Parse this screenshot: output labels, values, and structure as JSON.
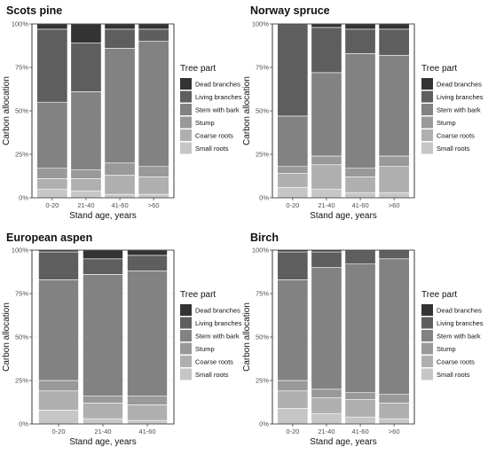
{
  "legend": {
    "title": "Tree part",
    "entries": [
      "Dead branches",
      "Living branches",
      "Stem with bark",
      "Stump",
      "Coarse roots",
      "Small roots"
    ]
  },
  "colors": {
    "Dead branches": "#333333",
    "Living branches": "#5e5e5e",
    "Stem with bark": "#828282",
    "Stump": "#999999",
    "Coarse roots": "#afafaf",
    "Small roots": "#c6c6c6"
  },
  "chart_data": [
    {
      "type": "bar",
      "stacked": true,
      "title": "Scots pine",
      "xlabel": "Stand age, years",
      "ylabel": "Carbon allocation",
      "ylim": [
        0,
        100
      ],
      "yticks": [
        "0%",
        "25%",
        "50%",
        "75%",
        "100%"
      ],
      "categories": [
        "0-20",
        "21-40",
        "41-60",
        ">60"
      ],
      "series": [
        {
          "name": "Small roots",
          "values": [
            5,
            4,
            2,
            2
          ]
        },
        {
          "name": "Coarse roots",
          "values": [
            6,
            7,
            11,
            10
          ]
        },
        {
          "name": "Stump",
          "values": [
            6,
            5,
            7,
            6
          ]
        },
        {
          "name": "Stem with bark",
          "values": [
            38,
            45,
            66,
            72
          ]
        },
        {
          "name": "Living branches",
          "values": [
            42,
            28,
            11,
            7
          ]
        },
        {
          "name": "Dead branches",
          "values": [
            3,
            11,
            3,
            3
          ]
        }
      ]
    },
    {
      "type": "bar",
      "stacked": true,
      "title": "Norway spruce",
      "xlabel": "Stand age, years",
      "ylabel": "Carbon allocation",
      "ylim": [
        0,
        100
      ],
      "yticks": [
        "0%",
        "25%",
        "50%",
        "75%",
        "100%"
      ],
      "categories": [
        "0-20",
        "21-40",
        "41-60",
        ">60"
      ],
      "series": [
        {
          "name": "Small roots",
          "values": [
            6,
            5,
            3,
            3
          ]
        },
        {
          "name": "Coarse roots",
          "values": [
            8,
            14,
            9,
            15
          ]
        },
        {
          "name": "Stump",
          "values": [
            4,
            5,
            5,
            6
          ]
        },
        {
          "name": "Stem with bark",
          "values": [
            29,
            48,
            66,
            58
          ]
        },
        {
          "name": "Living branches",
          "values": [
            53,
            26,
            14,
            15
          ]
        },
        {
          "name": "Dead branches",
          "values": [
            0,
            2,
            3,
            3
          ]
        }
      ]
    },
    {
      "type": "bar",
      "stacked": true,
      "title": "European aspen",
      "xlabel": "Stand age, years",
      "ylabel": "Carbon allocation",
      "ylim": [
        0,
        100
      ],
      "yticks": [
        "0%",
        "25%",
        "50%",
        "75%",
        "100%"
      ],
      "categories": [
        "0-20",
        "21-40",
        "41-60"
      ],
      "series": [
        {
          "name": "Small roots",
          "values": [
            8,
            3,
            2
          ]
        },
        {
          "name": "Coarse roots",
          "values": [
            11,
            9,
            9
          ]
        },
        {
          "name": "Stump",
          "values": [
            6,
            4,
            5
          ]
        },
        {
          "name": "Stem with bark",
          "values": [
            58,
            70,
            72
          ]
        },
        {
          "name": "Living branches",
          "values": [
            16,
            9,
            9
          ]
        },
        {
          "name": "Dead branches",
          "values": [
            1,
            5,
            3
          ]
        }
      ]
    },
    {
      "type": "bar",
      "stacked": true,
      "title": "Birch",
      "xlabel": "Stand age, years",
      "ylabel": "Carbon allocation",
      "ylim": [
        0,
        100
      ],
      "yticks": [
        "0%",
        "25%",
        "50%",
        "75%",
        "100%"
      ],
      "categories": [
        "0-20",
        "21-40",
        "41-60",
        ">60"
      ],
      "series": [
        {
          "name": "Small roots",
          "values": [
            9,
            6,
            4,
            3
          ]
        },
        {
          "name": "Coarse roots",
          "values": [
            10,
            9,
            10,
            9
          ]
        },
        {
          "name": "Stump",
          "values": [
            6,
            5,
            4,
            5
          ]
        },
        {
          "name": "Stem with bark",
          "values": [
            58,
            70,
            74,
            78
          ]
        },
        {
          "name": "Living branches",
          "values": [
            16,
            9,
            8,
            5
          ]
        },
        {
          "name": "Dead branches",
          "values": [
            1,
            1,
            0,
            0
          ]
        }
      ]
    }
  ]
}
